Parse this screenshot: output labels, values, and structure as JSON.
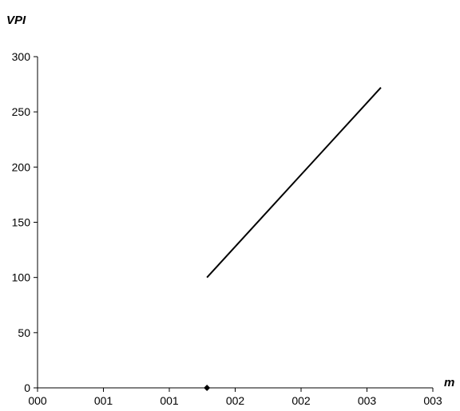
{
  "chart_data": {
    "type": "line",
    "title": "",
    "xlabel": "m",
    "ylabel": "VPI",
    "x_tick_labels": [
      "000",
      "001",
      "001",
      "002",
      "002",
      "003",
      "003"
    ],
    "y_tick_labels": [
      "0",
      "50",
      "100",
      "150",
      "200",
      "250",
      "300"
    ],
    "xlim": [
      0,
      0.0035
    ],
    "ylim": [
      0,
      300
    ],
    "y_ticks": [
      0,
      50,
      100,
      150,
      200,
      250,
      300
    ],
    "grid": false,
    "series": [
      {
        "kind": "line",
        "x": [
          0.0015,
          0.00304
        ],
        "y": [
          100,
          272
        ],
        "color": "#000000"
      },
      {
        "kind": "scatter",
        "marker": "diamond",
        "x": [
          0.0015
        ],
        "y": [
          0
        ],
        "color": "#000000"
      }
    ]
  }
}
